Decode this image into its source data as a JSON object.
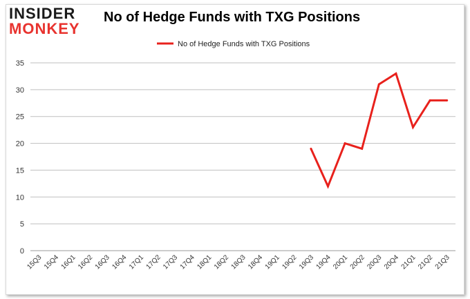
{
  "logo": {
    "line1": "INSIDER",
    "line2": "MONKEY"
  },
  "chart_data": {
    "type": "line",
    "title": "No of Hedge Funds with TXG Positions",
    "xlabel": "",
    "ylabel": "",
    "ylim": [
      0,
      35
    ],
    "yticks": [
      0,
      5,
      10,
      15,
      20,
      25,
      30,
      35
    ],
    "grid": true,
    "legend_position": "top",
    "categories": [
      "15Q3",
      "15Q4",
      "16Q1",
      "16Q2",
      "16Q3",
      "16Q4",
      "17Q1",
      "17Q2",
      "17Q3",
      "17Q4",
      "18Q1",
      "18Q2",
      "18Q3",
      "18Q4",
      "19Q1",
      "19Q2",
      "19Q3",
      "19Q4",
      "20Q1",
      "20Q2",
      "20Q3",
      "20Q4",
      "21Q1",
      "21Q2",
      "21Q3"
    ],
    "series": [
      {
        "name": "No of Hedge Funds with TXG Positions",
        "color": "#e8211c",
        "values": [
          null,
          null,
          null,
          null,
          null,
          null,
          null,
          null,
          null,
          null,
          null,
          null,
          null,
          null,
          null,
          null,
          19,
          12,
          20,
          19,
          31,
          33,
          23,
          28,
          28
        ]
      }
    ]
  }
}
